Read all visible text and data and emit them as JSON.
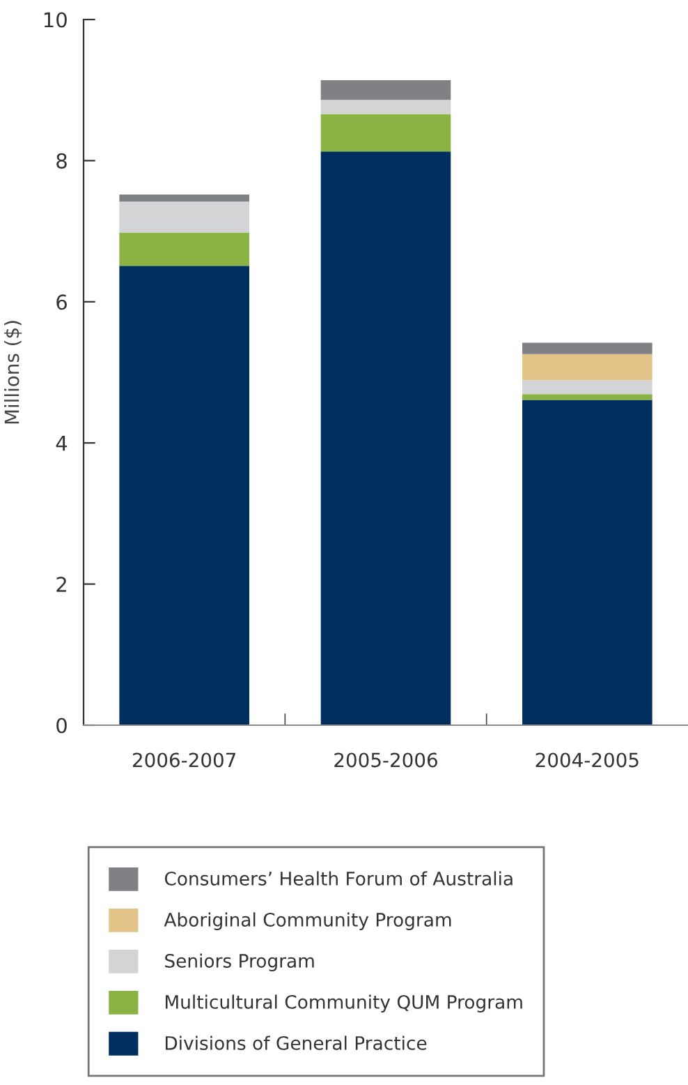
{
  "chart_data": {
    "type": "bar",
    "stacked": true,
    "ylabel": "Millions ($)",
    "categories": [
      "2006-2007",
      "2005-2006",
      "2004-2005"
    ],
    "series": [
      {
        "name": "Divisions of General Practice",
        "color": "#002f5f",
        "values": [
          6.51,
          8.13,
          4.61
        ]
      },
      {
        "name": "Multicultural Community QUM Program",
        "color": "#8ab343",
        "values": [
          0.47,
          0.53,
          0.08
        ]
      },
      {
        "name": "Seniors Program",
        "color": "#d3d4d6",
        "values": [
          0.44,
          0.2,
          0.2
        ]
      },
      {
        "name": "Aboriginal Community Program",
        "color": "#e2c488",
        "values": [
          0,
          0,
          0.37
        ]
      },
      {
        "name": "Consumers’ Health Forum of Australia",
        "color": "#808184",
        "values": [
          0.1,
          0.28,
          0.16
        ]
      }
    ],
    "ylim": [
      0,
      10
    ],
    "yticks": [
      0,
      2,
      4,
      6,
      8,
      10
    ],
    "grid": false,
    "legend": "bottom"
  }
}
